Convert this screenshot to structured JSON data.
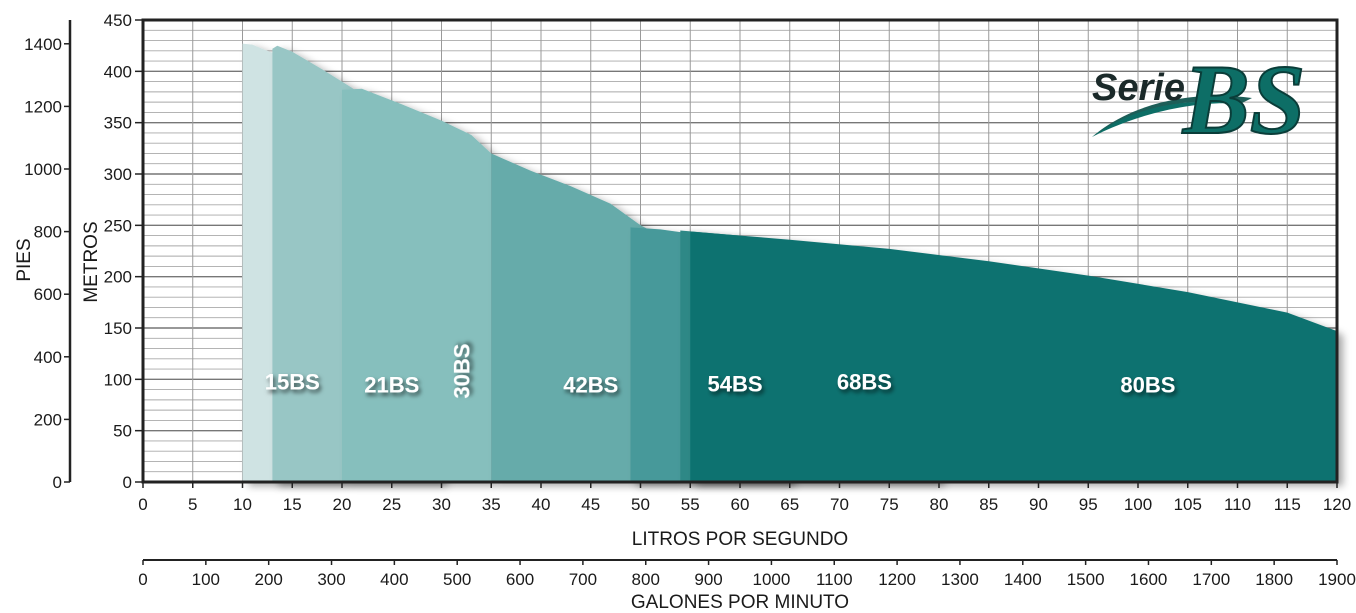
{
  "logo": {
    "serie": "Serie",
    "bs": "BS"
  },
  "chart_data": {
    "type": "area",
    "x_primary": {
      "label": "LITROS POR SEGUNDO",
      "range": [
        0,
        120
      ],
      "ticks": [
        0,
        5,
        10,
        15,
        20,
        25,
        30,
        35,
        40,
        45,
        50,
        55,
        60,
        65,
        70,
        75,
        80,
        85,
        90,
        95,
        100,
        105,
        110,
        115,
        120
      ]
    },
    "x_secondary": {
      "label": "GALONES POR MINUTO",
      "range": [
        0,
        1900
      ],
      "ticks": [
        0,
        100,
        200,
        300,
        400,
        500,
        600,
        700,
        800,
        900,
        1000,
        1100,
        1200,
        1300,
        1400,
        1500,
        1600,
        1700,
        1800,
        1900
      ]
    },
    "y_primary": {
      "label": "METROS",
      "range": [
        0,
        450
      ],
      "ticks": [
        0,
        50,
        100,
        150,
        200,
        250,
        300,
        350,
        400,
        450
      ]
    },
    "y_secondary": {
      "label": "PIES",
      "range": [
        0,
        1476
      ],
      "ticks": [
        0,
        200,
        400,
        600,
        800,
        1000,
        1200,
        1400
      ]
    },
    "grid": true,
    "series": [
      {
        "name": "15BS",
        "color": "#cfe3e3",
        "points": [
          [
            10,
            0
          ],
          [
            10,
            427
          ],
          [
            11,
            426
          ],
          [
            13,
            418
          ],
          [
            15,
            404
          ],
          [
            17,
            383
          ],
          [
            19,
            352
          ],
          [
            20,
            297
          ],
          [
            20,
            0
          ]
        ]
      },
      {
        "name": "21BS",
        "color": "#98c6c5",
        "points": [
          [
            13,
            0
          ],
          [
            13,
            422
          ],
          [
            13.5,
            425
          ],
          [
            15,
            419
          ],
          [
            18,
            402
          ],
          [
            21,
            384
          ],
          [
            24,
            363
          ],
          [
            27,
            333
          ],
          [
            29,
            305
          ],
          [
            30,
            284
          ],
          [
            30,
            0
          ]
        ]
      },
      {
        "name": "30BS",
        "color": "#86bfbd",
        "points": [
          [
            20,
            0
          ],
          [
            20,
            382
          ],
          [
            22,
            383
          ],
          [
            26,
            368
          ],
          [
            30,
            352
          ],
          [
            33,
            338
          ],
          [
            35,
            320
          ],
          [
            35,
            0
          ]
        ]
      },
      {
        "name": "42BS",
        "color": "#66abaa",
        "points": [
          [
            35,
            0
          ],
          [
            35,
            320
          ],
          [
            39,
            303
          ],
          [
            43,
            288
          ],
          [
            47,
            271
          ],
          [
            50,
            250
          ],
          [
            53,
            235
          ],
          [
            54,
            225
          ],
          [
            54,
            208
          ],
          [
            54,
            0
          ]
        ]
      },
      {
        "name": "54BS",
        "color": "#47999a",
        "points": [
          [
            49,
            0
          ],
          [
            49,
            248
          ],
          [
            52,
            246
          ],
          [
            55,
            242
          ],
          [
            58,
            235
          ],
          [
            61,
            225
          ],
          [
            63,
            215
          ],
          [
            65,
            190
          ],
          [
            65,
            0
          ]
        ]
      },
      {
        "name": "68BS",
        "color": "#2f8886",
        "points": [
          [
            54,
            0
          ],
          [
            54,
            245
          ],
          [
            60,
            240
          ],
          [
            66,
            233
          ],
          [
            71,
            226
          ],
          [
            76,
            218
          ],
          [
            80,
            210
          ],
          [
            80,
            196
          ],
          [
            80,
            0
          ]
        ]
      },
      {
        "name": "80BS",
        "color": "#0f7270",
        "points": [
          [
            55,
            0
          ],
          [
            55,
            244
          ],
          [
            65,
            236
          ],
          [
            75,
            227
          ],
          [
            85,
            215
          ],
          [
            95,
            201
          ],
          [
            105,
            185
          ],
          [
            115,
            165
          ],
          [
            120,
            147
          ],
          [
            120,
            0
          ]
        ]
      }
    ],
    "labels": [
      {
        "text": "15BS",
        "x": 15,
        "y": 90,
        "rotate": false
      },
      {
        "text": "21BS",
        "x": 25,
        "y": 87,
        "rotate": false
      },
      {
        "text": "30BS",
        "x": 32.8,
        "y": 108,
        "rotate": true
      },
      {
        "text": "42BS",
        "x": 45,
        "y": 87,
        "rotate": false
      },
      {
        "text": "54BS",
        "x": 59.5,
        "y": 88,
        "rotate": false
      },
      {
        "text": "68BS",
        "x": 72.5,
        "y": 90,
        "rotate": false
      },
      {
        "text": "80BS",
        "x": 101,
        "y": 87,
        "rotate": false
      }
    ]
  }
}
